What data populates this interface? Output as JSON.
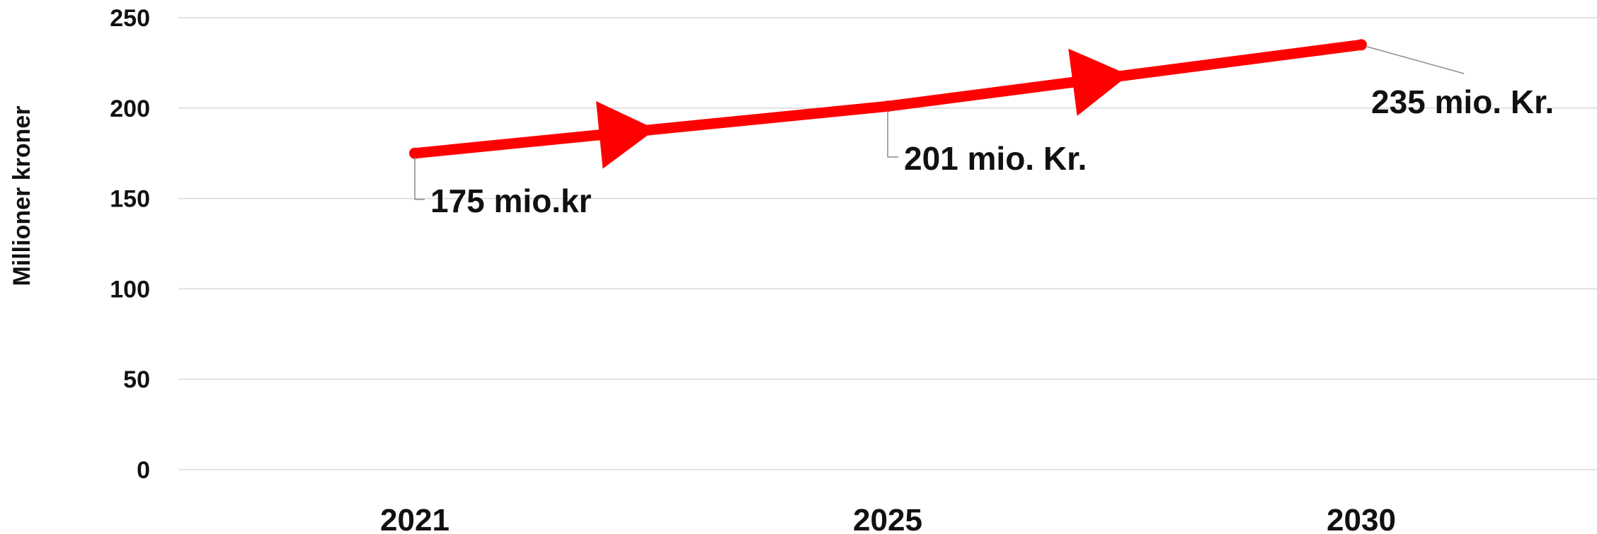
{
  "chart_data": {
    "type": "line",
    "title": "",
    "ylabel": "Millioner kroner",
    "xlabel": "",
    "categories": [
      "2021",
      "2025",
      "2030"
    ],
    "series": [
      {
        "values": [
          175,
          201,
          235
        ],
        "color": "#ff0000"
      }
    ],
    "data_labels": [
      "175 mio.kr",
      "201 mio. Kr.",
      "235 mio. Kr."
    ],
    "yticks": [
      0,
      50,
      100,
      150,
      200,
      250
    ],
    "ylim": [
      0,
      250
    ],
    "grid": true,
    "legend": "none",
    "line_style": "thick line with arrowheads pointing right between points"
  }
}
